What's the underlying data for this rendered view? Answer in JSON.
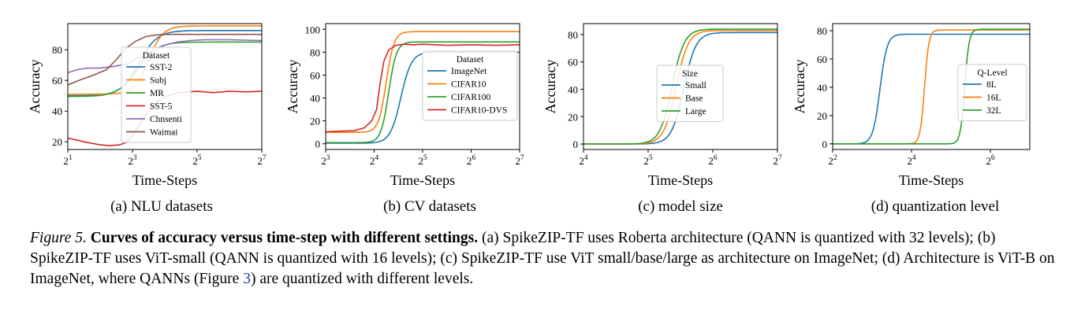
{
  "figure": {
    "label": "Figure 5.",
    "title": "Curves of accuracy versus time-step with different settings.",
    "caption_part1": "(a) SpikeZIP-TF uses Roberta architecture (QANN is quantized with 32 levels); (b) SpikeZIP-TF uses ViT-small (QANN is quantized with 16 levels); (c) SpikeZIP-TF use ViT small/base/large as architecture on ImageNet; (d) Architecture is ViT-B on ImageNet, where QANNs (Figure ",
    "caption_ref": "3",
    "caption_part2": ") are quantized with different levels."
  },
  "colors": {
    "blue": "#1f77b4",
    "orange": "#ff7f0e",
    "green": "#2ca02c",
    "red": "#d62728",
    "purple": "#9467bd",
    "brown": "#8c564b"
  },
  "chart_data": [
    {
      "type": "line",
      "subcaption": "(a) NLU datasets",
      "xlabel": "Time-Steps",
      "ylabel": "Accuracy",
      "xscale": "log2",
      "xlim": [
        1,
        7
      ],
      "ylim": [
        15,
        97
      ],
      "xticks": [
        1,
        3,
        5,
        7
      ],
      "yticks": [
        20,
        40,
        60,
        80
      ],
      "legend_title": "Dataset",
      "legend_position": "center-right",
      "series": [
        {
          "name": "SST-2",
          "color": "blue",
          "kind": "sigmoid",
          "start": 50,
          "end": 92.5,
          "mid": 3.2,
          "width": 0.28
        },
        {
          "name": "Subj",
          "color": "orange",
          "kind": "sigmoid",
          "start": 51,
          "end": 95.5,
          "mid": 3.5,
          "width": 0.22
        },
        {
          "name": "MR",
          "color": "green",
          "kind": "sigmoid",
          "start": 49.5,
          "end": 85,
          "mid": 3.15,
          "width": 0.3
        },
        {
          "name": "SST-5",
          "color": "red",
          "kind": "points",
          "x": [
            1,
            1.5,
            2.0,
            2.3,
            2.6,
            2.8,
            3.0,
            3.2,
            3.5,
            3.8,
            4.1,
            4.4,
            4.7,
            5.0,
            5.5,
            6,
            6.5,
            7
          ],
          "y": [
            22.5,
            20,
            18,
            17.5,
            18,
            19.5,
            24,
            31,
            40,
            47,
            50,
            52,
            52.5,
            53,
            52,
            53,
            52.5,
            53
          ]
        },
        {
          "name": "Chnsenti",
          "color": "purple",
          "kind": "points",
          "x": [
            1,
            1.3,
            1.6,
            2.0,
            2.4,
            2.8,
            3.1,
            3.4,
            3.7,
            4.0,
            4.4,
            4.8,
            5.2,
            6,
            7
          ],
          "y": [
            65,
            67,
            68,
            68,
            69,
            70.5,
            74,
            77,
            80,
            83,
            85,
            86,
            86.5,
            86.5,
            86
          ]
        },
        {
          "name": "Waimai",
          "color": "brown",
          "kind": "points",
          "x": [
            1,
            1.4,
            1.8,
            2.2,
            2.5,
            2.8,
            3.1,
            3.4,
            3.7,
            4.0,
            4.5,
            5,
            6,
            7
          ],
          "y": [
            57,
            60.5,
            63.5,
            67,
            73.5,
            81,
            85.5,
            88.5,
            89.5,
            90,
            90,
            90,
            90,
            90
          ]
        }
      ]
    },
    {
      "type": "line",
      "subcaption": "(b) CV datasets",
      "xlabel": "Time-Steps",
      "ylabel": "Accuracy",
      "xscale": "log2",
      "xlim": [
        3,
        7
      ],
      "ylim": [
        -5,
        105
      ],
      "xticks": [
        3,
        4,
        5,
        6,
        7
      ],
      "yticks": [
        0,
        20,
        40,
        60,
        80,
        100
      ],
      "legend_title": "Dataset",
      "legend_position": "center-right",
      "series": [
        {
          "name": "ImageNet",
          "color": "blue",
          "kind": "sigmoid",
          "start": 0.5,
          "end": 80,
          "mid": 4.55,
          "width": 0.11
        },
        {
          "name": "CIFAR10",
          "color": "orange",
          "kind": "sigmoid",
          "start": 10,
          "end": 98,
          "mid": 4.25,
          "width": 0.08
        },
        {
          "name": "CIFAR100",
          "color": "green",
          "kind": "sigmoid",
          "start": 1,
          "end": 89,
          "mid": 4.3,
          "width": 0.08
        },
        {
          "name": "CIFAR10-DVS",
          "color": "red",
          "kind": "points",
          "x": [
            3,
            3.3,
            3.6,
            3.8,
            3.95,
            4.05,
            4.12,
            4.2,
            4.3,
            4.45,
            4.6,
            4.8,
            5.0,
            5.5,
            6,
            6.5,
            7
          ],
          "y": [
            10.5,
            11,
            11.5,
            14,
            20,
            30,
            52,
            72,
            82,
            86,
            87,
            86.5,
            87,
            86,
            86.5,
            86,
            86.5
          ]
        }
      ]
    },
    {
      "type": "line",
      "subcaption": "(c) model size",
      "xlabel": "Time-Steps",
      "ylabel": "Accuracy",
      "xscale": "log2",
      "xlim": [
        4,
        7
      ],
      "ylim": [
        -4,
        88
      ],
      "xticks": [
        4,
        5,
        6,
        7
      ],
      "yticks": [
        0,
        20,
        40,
        60,
        80
      ],
      "legend_title": "Size",
      "legend_position": "lower-right",
      "series": [
        {
          "name": "Small",
          "color": "blue",
          "kind": "sigmoid",
          "start": 0,
          "end": 81.5,
          "mid": 5.55,
          "width": 0.095
        },
        {
          "name": "Base",
          "color": "orange",
          "kind": "sigmoid",
          "start": 0,
          "end": 83,
          "mid": 5.43,
          "width": 0.095
        },
        {
          "name": "Large",
          "color": "green",
          "kind": "sigmoid",
          "start": 0,
          "end": 84,
          "mid": 5.37,
          "width": 0.095
        }
      ]
    },
    {
      "type": "line",
      "subcaption": "(d) quantization level",
      "xlabel": "Time-Steps",
      "ylabel": "Accuracy",
      "xscale": "log2",
      "xlim": [
        2,
        7
      ],
      "ylim": [
        -4,
        85
      ],
      "xticks": [
        2,
        4,
        6
      ],
      "yticks": [
        0,
        20,
        40,
        60,
        80
      ],
      "legend_title": "Q-Level",
      "legend_position": "center-right",
      "series": [
        {
          "name": "8L",
          "color": "blue",
          "kind": "sigmoid",
          "start": 0,
          "end": 77.5,
          "mid": 3.2,
          "width": 0.09
        },
        {
          "name": "16L",
          "color": "orange",
          "kind": "sigmoid",
          "start": 0,
          "end": 80.5,
          "mid": 4.33,
          "width": 0.055
        },
        {
          "name": "32L",
          "color": "green",
          "kind": "sigmoid",
          "start": 0,
          "end": 81,
          "mid": 5.35,
          "width": 0.055
        }
      ]
    }
  ]
}
